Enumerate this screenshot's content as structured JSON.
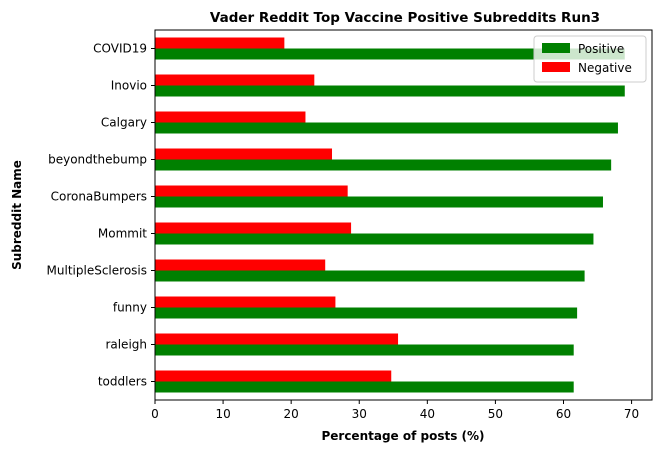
{
  "chart_data": {
    "type": "bar",
    "orientation": "horizontal",
    "title": "Vader Reddit Top Vaccine Positive Subreddits Run3",
    "xlabel": "Percentage of posts (%)",
    "ylabel": "Subreddit Name",
    "xlim": [
      0,
      73
    ],
    "xticks": [
      0,
      10,
      20,
      30,
      40,
      50,
      60,
      70
    ],
    "grid": false,
    "legend_position": "top-right",
    "categories": [
      "COVID19",
      "Inovio",
      "Calgary",
      "beyondthebump",
      "CoronaBumpers",
      "Mommit",
      "MultipleSclerosis",
      "funny",
      "raleigh",
      "toddlers"
    ],
    "series": [
      {
        "name": "Positive",
        "color": "#008000",
        "values": [
          69.0,
          69.0,
          68.0,
          67.0,
          65.8,
          64.4,
          63.1,
          62.0,
          61.5,
          61.5
        ]
      },
      {
        "name": "Negative",
        "color": "#ff0000",
        "values": [
          19.0,
          23.4,
          22.1,
          26.0,
          28.3,
          28.8,
          25.0,
          26.5,
          35.7,
          34.7
        ]
      }
    ]
  }
}
